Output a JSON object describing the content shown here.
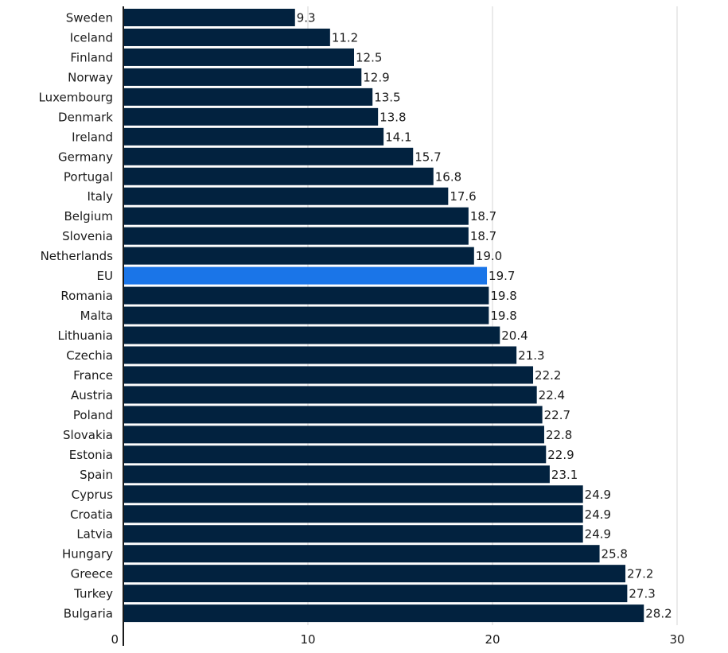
{
  "chart_data": {
    "type": "bar",
    "orientation": "horizontal",
    "categories": [
      "Sweden",
      "Iceland",
      "Finland",
      "Norway",
      "Luxembourg",
      "Denmark",
      "Ireland",
      "Germany",
      "Portugal",
      "Italy",
      "Belgium",
      "Slovenia",
      "Netherlands",
      "EU",
      "Romania",
      "Malta",
      "Lithuania",
      "Czechia",
      "France",
      "Austria",
      "Poland",
      "Slovakia",
      "Estonia",
      "Spain",
      "Cyprus",
      "Croatia",
      "Latvia",
      "Hungary",
      "Greece",
      "Turkey",
      "Bulgaria"
    ],
    "values": [
      9.3,
      11.2,
      12.5,
      12.9,
      13.5,
      13.8,
      14.1,
      15.7,
      16.8,
      17.6,
      18.7,
      18.7,
      19.0,
      19.7,
      19.8,
      19.8,
      20.4,
      21.3,
      22.2,
      22.4,
      22.7,
      22.8,
      22.9,
      23.1,
      24.9,
      24.9,
      24.9,
      25.8,
      27.2,
      27.3,
      28.2
    ],
    "value_labels": [
      "9.3",
      "11.2",
      "12.5",
      "12.9",
      "13.5",
      "13.8",
      "14.1",
      "15.7",
      "16.8",
      "17.6",
      "18.7",
      "18.7",
      "19.0",
      "19.7",
      "19.8",
      "19.8",
      "20.4",
      "21.3",
      "22.2",
      "22.4",
      "22.7",
      "22.8",
      "22.9",
      "23.1",
      "24.9",
      "24.9",
      "24.9",
      "25.8",
      "27.2",
      "27.3",
      "28.2"
    ],
    "highlight": "EU",
    "xlim": [
      0,
      30
    ],
    "x_ticks": [
      0,
      10,
      20,
      30
    ],
    "x_tick_labels": [
      "0",
      "10",
      "20",
      "30"
    ],
    "grid": true,
    "title": "",
    "xlabel": "",
    "ylabel": ""
  },
  "colors": {
    "bar": "#02223f",
    "highlight": "#1a75e8",
    "grid": "#d6d6d6",
    "text": "#1a1a1a"
  }
}
